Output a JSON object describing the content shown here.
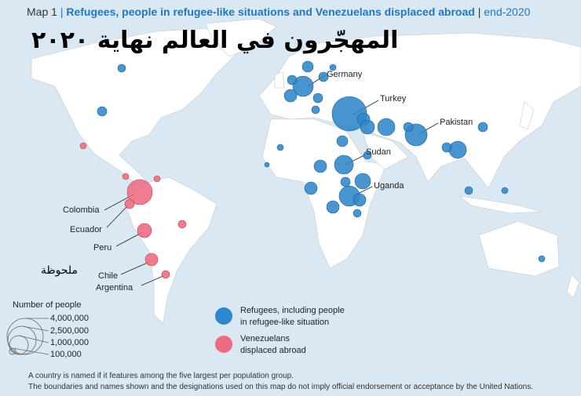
{
  "header": {
    "map_number": "Map 1",
    "separator": "|",
    "title": "Refugees, people in refugee-like situations and Venezuelans displaced abroad",
    "period_separator": "|",
    "period": "end-2020"
  },
  "overlay": {
    "arabic_title": "المهجّرون في العالم نهاية ٢٠٢٠",
    "arabic_note": "ملحوظة"
  },
  "labels": {
    "germany": "Germany",
    "turkey": "Turkey",
    "pakistan": "Pakistan",
    "sudan": "Sudan",
    "uganda": "Uganda",
    "colombia": "Colombia",
    "ecuador": "Ecuador",
    "peru": "Peru",
    "chile": "Chile",
    "argentina": "Argentina"
  },
  "legend": {
    "size_title": "Number of people",
    "sizes": [
      "4,000,000",
      "2,500,000",
      "1,000,000",
      "100,000"
    ],
    "refugees": {
      "line1": "Refugees, including people",
      "line2": "in refugee-like situation",
      "color": "#2f86c9"
    },
    "venezuelans": {
      "line1": "Venezuelans",
      "line2": "displaced abroad",
      "color": "#ee6b80"
    }
  },
  "footnotes": [
    "A country is named if it features among the five largest per population group.",
    "The boundaries and names shown and the designations used on this map do not imply official endorsement or acceptance by the United Nations."
  ]
}
